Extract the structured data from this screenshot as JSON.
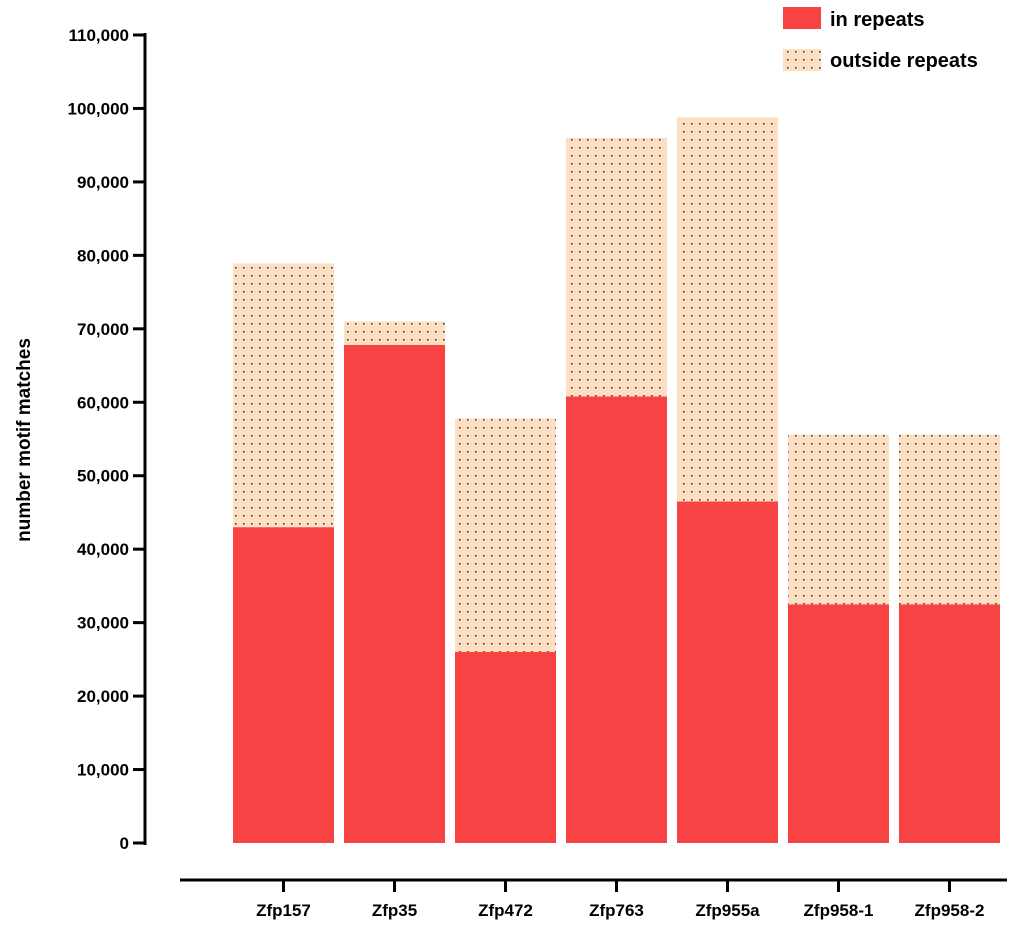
{
  "chart_data": {
    "type": "bar",
    "stacked": true,
    "title": "",
    "xlabel": "",
    "ylabel": "number motif matches",
    "ylim": [
      0,
      110000
    ],
    "yticks": [
      0,
      10000,
      20000,
      30000,
      40000,
      50000,
      60000,
      70000,
      80000,
      90000,
      100000,
      110000
    ],
    "ytick_labels": [
      "0",
      "10,000",
      "20,000",
      "30,000",
      "40,000",
      "50,000",
      "60,000",
      "70,000",
      "80,000",
      "90,000",
      "100,000",
      "110,000"
    ],
    "categories": [
      "Zfp157",
      "Zfp35",
      "Zfp472",
      "Zfp763",
      "Zfp955a",
      "Zfp958-1",
      "Zfp958-2"
    ],
    "series": [
      {
        "name": "in repeats",
        "color": "#f74343",
        "pattern": "solid",
        "values": [
          43000,
          67800,
          26000,
          60800,
          46500,
          32500,
          32500
        ]
      },
      {
        "name": "outside repeats",
        "color": "#fde0c3",
        "pattern": "dotted",
        "values": [
          35900,
          3200,
          31800,
          35200,
          52300,
          23100,
          23100
        ]
      }
    ],
    "legend": "top-right",
    "grid": false
  }
}
